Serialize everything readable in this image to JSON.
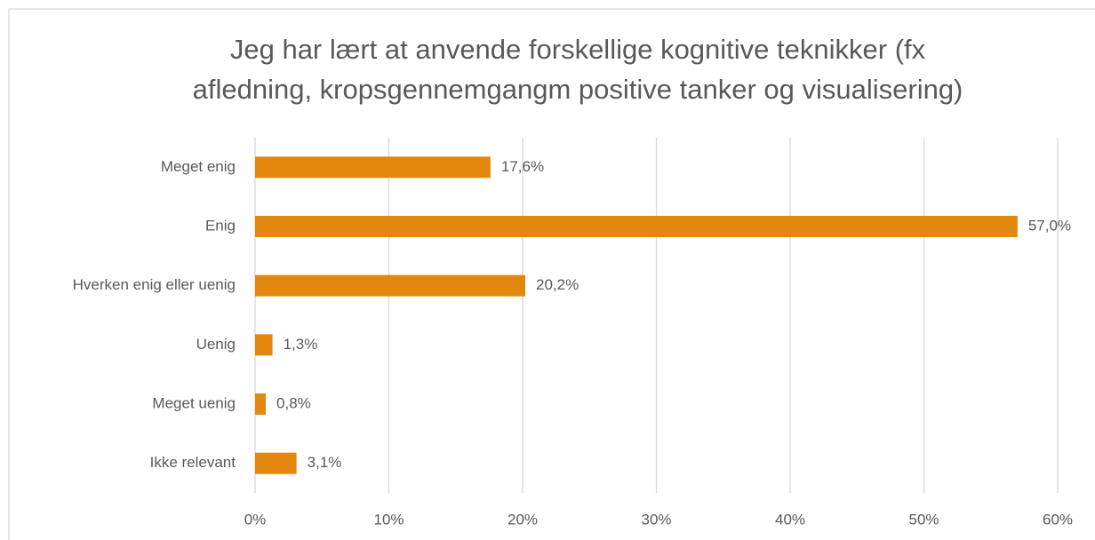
{
  "chart_data": {
    "type": "bar",
    "orientation": "horizontal",
    "title": [
      "Jeg har lært at anvende forskellige kognitive teknikker (fx",
      "afledning, kropsgennemgangm positive tanker og visualisering)"
    ],
    "categories": [
      "Meget enig",
      "Enig",
      "Hverken enig eller uenig",
      "Uenig",
      "Meget uenig",
      "Ikke relevant"
    ],
    "values": [
      17.6,
      57.0,
      20.2,
      1.3,
      0.8,
      3.1
    ],
    "value_labels": [
      "17,6%",
      "57,0%",
      "20,2%",
      "1,3%",
      "0,8%",
      "3,1%"
    ],
    "color": "#e3870f",
    "xlim": [
      0,
      60
    ],
    "xticks": [
      {
        "value": 0,
        "label": "0%"
      },
      {
        "value": 10,
        "label": "10%"
      },
      {
        "value": 20,
        "label": "20%"
      },
      {
        "value": 30,
        "label": "30%"
      },
      {
        "value": 40,
        "label": "40%"
      },
      {
        "value": 50,
        "label": "50%"
      },
      {
        "value": 60,
        "label": "60%"
      }
    ],
    "grid": true
  }
}
